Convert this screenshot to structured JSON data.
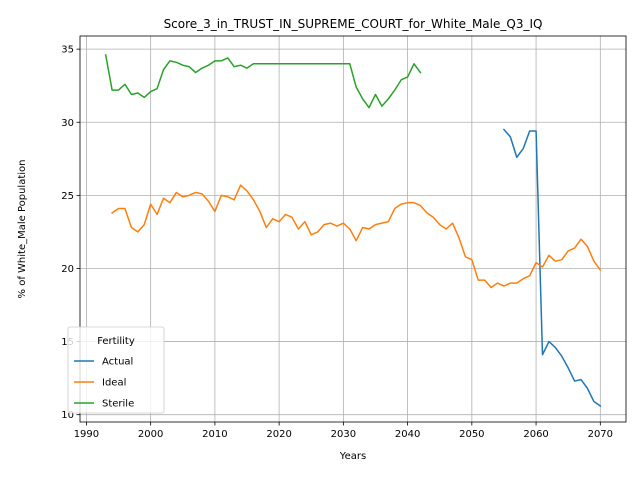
{
  "chart_data": {
    "type": "line",
    "title": "Score_3_in_TRUST_IN_SUPREME_COURT_for_White_Male_Q3_IQ",
    "xlabel": "Years",
    "ylabel": "% of White_Male Population",
    "xlim": [
      1989,
      2074
    ],
    "ylim": [
      9.5,
      35.9
    ],
    "xticks": [
      1990,
      2000,
      2010,
      2020,
      2030,
      2040,
      2050,
      2060,
      2070
    ],
    "yticks": [
      10,
      15,
      20,
      25,
      30,
      35
    ],
    "grid": true,
    "legend": {
      "title": "Fertility",
      "placement": "lower-left"
    },
    "series": [
      {
        "name": "Actual",
        "color": "#1f77b4",
        "x": [
          2055,
          2056,
          2057,
          2058,
          2059,
          2060,
          2061,
          2062,
          2063,
          2064,
          2065,
          2066,
          2067,
          2068,
          2069,
          2070
        ],
        "y": [
          29.5,
          29.0,
          27.6,
          28.2,
          29.4,
          29.4,
          14.1,
          15.0,
          14.6,
          14.0,
          13.2,
          12.3,
          12.4,
          11.8,
          10.9,
          10.6
        ]
      },
      {
        "name": "Ideal",
        "color": "#ff7f0e",
        "x": [
          1994,
          1995,
          1996,
          1997,
          1998,
          1999,
          2000,
          2001,
          2002,
          2003,
          2004,
          2005,
          2006,
          2007,
          2008,
          2009,
          2010,
          2011,
          2012,
          2013,
          2014,
          2015,
          2016,
          2017,
          2018,
          2019,
          2020,
          2021,
          2022,
          2023,
          2024,
          2025,
          2026,
          2027,
          2028,
          2029,
          2030,
          2031,
          2032,
          2033,
          2034,
          2035,
          2036,
          2037,
          2038,
          2039,
          2040,
          2041,
          2042,
          2043,
          2044,
          2045,
          2046,
          2047,
          2048,
          2049,
          2050,
          2051,
          2052,
          2053,
          2054,
          2055,
          2056,
          2057,
          2058,
          2059,
          2060,
          2061,
          2062,
          2063,
          2064,
          2065,
          2066,
          2067,
          2068,
          2069,
          2070
        ],
        "y": [
          23.8,
          24.1,
          24.1,
          22.8,
          22.5,
          23.0,
          24.4,
          23.7,
          24.8,
          24.5,
          25.2,
          24.9,
          25.0,
          25.2,
          25.1,
          24.6,
          23.9,
          25.0,
          24.9,
          24.7,
          25.7,
          25.3,
          24.7,
          23.9,
          22.8,
          23.4,
          23.2,
          23.7,
          23.5,
          22.7,
          23.2,
          22.3,
          22.5,
          23.0,
          23.1,
          22.9,
          23.1,
          22.7,
          21.9,
          22.8,
          22.7,
          23.0,
          23.1,
          23.2,
          24.1,
          24.4,
          24.5,
          24.5,
          24.3,
          23.8,
          23.5,
          23.0,
          22.7,
          23.1,
          22.1,
          20.8,
          20.6,
          19.2,
          19.2,
          18.7,
          19.0,
          18.8,
          19.0,
          19.0,
          19.3,
          19.5,
          20.4,
          20.1,
          20.9,
          20.5,
          20.6,
          21.2,
          21.4,
          22.0,
          21.5,
          20.5,
          19.9
        ]
      },
      {
        "name": "Sterile",
        "color": "#2ca02c",
        "x": [
          1993,
          1994,
          1995,
          1996,
          1997,
          1998,
          1999,
          2000,
          2001,
          2002,
          2003,
          2004,
          2005,
          2006,
          2007,
          2008,
          2009,
          2010,
          2011,
          2012,
          2013,
          2014,
          2015,
          2016,
          2017,
          2018,
          2019,
          2020,
          2021,
          2022,
          2023,
          2024,
          2025,
          2026,
          2027,
          2028,
          2029,
          2030,
          2031,
          2032,
          2033,
          2034,
          2035,
          2036,
          2037,
          2038,
          2039,
          2040,
          2041,
          2042
        ],
        "y": [
          34.6,
          32.2,
          32.2,
          32.6,
          31.9,
          32.0,
          31.7,
          32.1,
          32.3,
          33.6,
          34.2,
          34.1,
          33.9,
          33.8,
          33.4,
          33.7,
          33.9,
          34.2,
          34.2,
          34.4,
          33.8,
          33.9,
          33.7,
          34.0,
          34.0,
          34.0,
          34.0,
          34.0,
          34.0,
          34.0,
          34.0,
          34.0,
          34.0,
          34.0,
          34.0,
          34.0,
          34.0,
          34.0,
          34.0,
          32.4,
          31.6,
          31.0,
          31.9,
          31.1,
          31.6,
          32.2,
          32.9,
          33.1,
          34.0,
          33.4
        ]
      }
    ]
  }
}
